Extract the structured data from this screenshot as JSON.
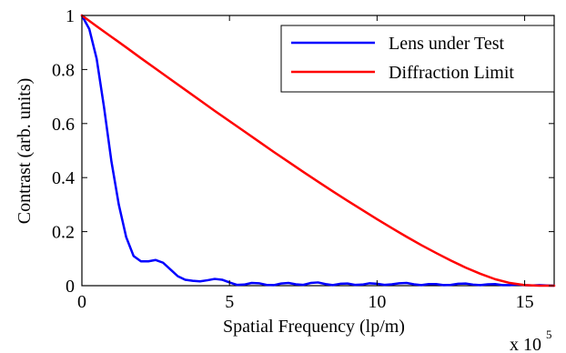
{
  "chart_data": {
    "type": "line",
    "xlabel": "Spatial Frequency (lp/m)",
    "ylabel": "Contrast (arb. units)",
    "x_multiplier_label": {
      "base": "x 10",
      "exponent": "5"
    },
    "xlim": [
      0,
      16
    ],
    "ylim": [
      0,
      1
    ],
    "x_ticks": [
      0,
      5,
      10,
      15
    ],
    "y_ticks": [
      0,
      0.2,
      0.4,
      0.6,
      0.8,
      1
    ],
    "x_tick_labels": [
      "0",
      "5",
      "10",
      "15"
    ],
    "y_tick_labels": [
      "0",
      "0.2",
      "0.4",
      "0.6",
      "0.8",
      "1"
    ],
    "grid": false,
    "legend_position": "top-right",
    "series": [
      {
        "name": "Lens under Test",
        "color": "#0000ff",
        "x": [
          0,
          0.25,
          0.5,
          0.75,
          1.0,
          1.25,
          1.5,
          1.75,
          2.0,
          2.25,
          2.5,
          2.75,
          3.0,
          3.25,
          3.5,
          3.75,
          4.0,
          4.25,
          4.5,
          4.75,
          5.0,
          5.25,
          5.5,
          5.75,
          6.0,
          6.25,
          6.5,
          6.75,
          7.0,
          7.25,
          7.5,
          7.75,
          8.0,
          8.25,
          8.5,
          8.75,
          9.0,
          9.25,
          9.5,
          9.75,
          10.0,
          10.25,
          10.5,
          10.75,
          11.0,
          11.25,
          11.5,
          11.75,
          12.0,
          12.25,
          12.5,
          12.75,
          13.0,
          13.25,
          13.5,
          13.75,
          14.0,
          14.25,
          14.5,
          14.75,
          15.0,
          15.25,
          15.5,
          15.75,
          16.0
        ],
        "y": [
          1.0,
          0.95,
          0.84,
          0.66,
          0.46,
          0.3,
          0.18,
          0.11,
          0.09,
          0.09,
          0.095,
          0.085,
          0.06,
          0.035,
          0.022,
          0.018,
          0.016,
          0.02,
          0.025,
          0.022,
          0.012,
          0.003,
          0.004,
          0.01,
          0.009,
          0.003,
          0.002,
          0.008,
          0.01,
          0.005,
          0.003,
          0.01,
          0.012,
          0.006,
          0.002,
          0.007,
          0.008,
          0.003,
          0.004,
          0.009,
          0.007,
          0.003,
          0.005,
          0.009,
          0.01,
          0.005,
          0.002,
          0.006,
          0.006,
          0.002,
          0.003,
          0.007,
          0.008,
          0.004,
          0.002,
          0.005,
          0.006,
          0.002,
          0.002,
          0.004,
          0.002,
          0.001,
          0.002,
          0.001,
          0.0
        ]
      },
      {
        "name": "Diffraction Limit",
        "color": "#ff0000",
        "x": [
          0,
          0.5,
          1.0,
          1.5,
          2.0,
          2.5,
          3.0,
          3.5,
          4.0,
          4.5,
          5.0,
          5.5,
          6.0,
          6.5,
          7.0,
          7.5,
          8.0,
          8.5,
          9.0,
          9.5,
          10.0,
          10.5,
          11.0,
          11.5,
          12.0,
          12.5,
          13.0,
          13.5,
          14.0,
          14.5,
          15.0,
          15.5,
          16.0
        ],
        "y": [
          1.0,
          0.96,
          0.921,
          0.882,
          0.842,
          0.803,
          0.764,
          0.725,
          0.686,
          0.647,
          0.609,
          0.571,
          0.533,
          0.495,
          0.458,
          0.421,
          0.385,
          0.349,
          0.314,
          0.28,
          0.246,
          0.213,
          0.181,
          0.15,
          0.121,
          0.093,
          0.067,
          0.044,
          0.024,
          0.01,
          0.002,
          0.0,
          0.0
        ]
      }
    ]
  }
}
